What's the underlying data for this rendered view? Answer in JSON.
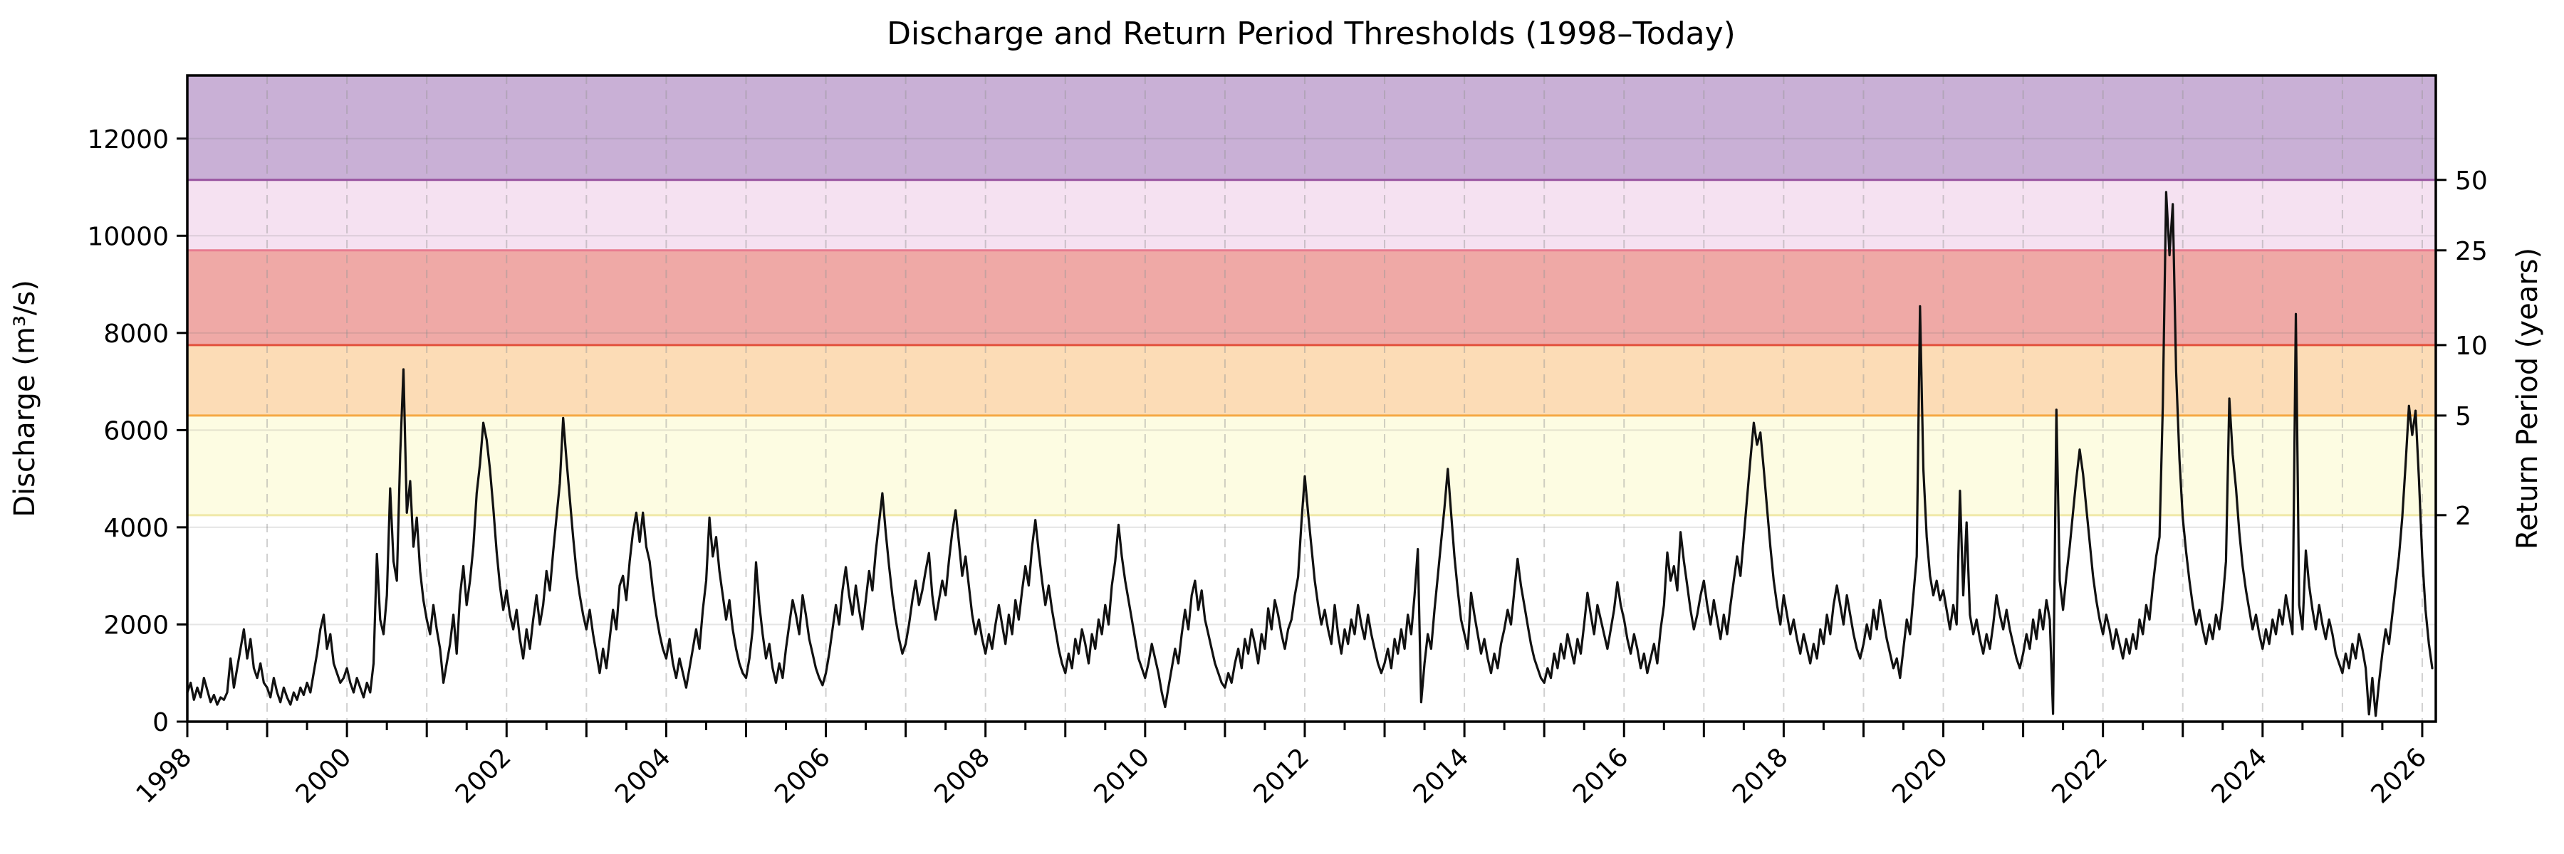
{
  "title": "Discharge and Return Period Thresholds (1998–Today)",
  "y_axis": {
    "label": "Discharge (m³/s)",
    "ticks": [
      0,
      2000,
      4000,
      6000,
      8000,
      10000,
      12000
    ]
  },
  "y2_axis": {
    "label": "Return Period (years)"
  },
  "x_axis": {
    "tick_label_years": [
      1998,
      2000,
      2002,
      2004,
      2006,
      2008,
      2010,
      2012,
      2014,
      2016,
      2018,
      2020,
      2022,
      2024,
      2026
    ]
  },
  "chart_data": {
    "type": "line",
    "title": "Discharge and Return Period Thresholds (1998–Today)",
    "xlabel": "",
    "ylabel": "Discharge (m³/s)",
    "y2label": "Return Period (years)",
    "xlim": [
      1998.0,
      2026.17
    ],
    "ylim": [
      0,
      13300
    ],
    "grid": true,
    "line_color": "#111111",
    "grid_color_h": "rgba(110,110,110,0.18)",
    "grid_color_v": "rgba(150,150,150,0.45)",
    "thresholds": [
      {
        "return_period_years": 2,
        "discharge": 4250,
        "band_color": "#fdfce2",
        "line_color": "#f0e9a8"
      },
      {
        "return_period_years": 5,
        "discharge": 6300,
        "band_color": "#fcdcb6",
        "line_color": "#f5a843"
      },
      {
        "return_period_years": 10,
        "discharge": 7750,
        "band_color": "#efa9a6",
        "line_color": "#e2503c"
      },
      {
        "return_period_years": 25,
        "discharge": 9700,
        "band_color": "#f5e1f1",
        "line_color": "#e87c90"
      },
      {
        "return_period_years": 50,
        "discharge": 11150,
        "band_color": "#c9b0d6",
        "line_color": "#9853a0"
      }
    ],
    "series": [
      {
        "name": "Discharge",
        "x_start_year": 1998.0,
        "samples_per_year": 24,
        "values": [
          600,
          800,
          450,
          700,
          500,
          900,
          650,
          400,
          550,
          350,
          500,
          450,
          600,
          1300,
          700,
          1100,
          1500,
          1900,
          1300,
          1700,
          1100,
          900,
          1200,
          800,
          700,
          500,
          900,
          600,
          400,
          700,
          500,
          350,
          600,
          450,
          700,
          550,
          800,
          600,
          1000,
          1400,
          1900,
          2200,
          1500,
          1800,
          1200,
          1000,
          800,
          900,
          1100,
          800,
          600,
          900,
          700,
          500,
          800,
          600,
          1200,
          3450,
          2100,
          1800,
          2600,
          4800,
          3300,
          2900,
          5500,
          7250,
          4300,
          4950,
          3600,
          4200,
          3100,
          2500,
          2100,
          1800,
          2400,
          1900,
          1500,
          800,
          1200,
          1600,
          2200,
          1400,
          2600,
          3200,
          2400,
          2900,
          3600,
          4700,
          5300,
          6150,
          5800,
          5200,
          4400,
          3500,
          2800,
          2300,
          2700,
          2200,
          1900,
          2300,
          1700,
          1300,
          1900,
          1500,
          2100,
          2600,
          2000,
          2400,
          3100,
          2700,
          3500,
          4200,
          4900,
          6250,
          5400,
          4600,
          3800,
          3100,
          2600,
          2200,
          1900,
          2300,
          1800,
          1400,
          1000,
          1500,
          1100,
          1700,
          2300,
          1900,
          2800,
          3000,
          2500,
          3300,
          3900,
          4300,
          3700,
          4300,
          3600,
          3300,
          2700,
          2200,
          1800,
          1500,
          1300,
          1700,
          1200,
          900,
          1300,
          1000,
          700,
          1100,
          1500,
          1900,
          1500,
          2300,
          2900,
          4200,
          3400,
          3800,
          3100,
          2600,
          2100,
          2500,
          1900,
          1500,
          1200,
          1000,
          900,
          1300,
          1900,
          3280,
          2400,
          1800,
          1300,
          1600,
          1100,
          800,
          1200,
          900,
          1500,
          2000,
          2500,
          2200,
          1800,
          2600,
          2200,
          1700,
          1400,
          1100,
          900,
          750,
          1000,
          1400,
          1900,
          2400,
          2000,
          2700,
          3180,
          2600,
          2200,
          2800,
          2300,
          1900,
          2500,
          3100,
          2700,
          3500,
          4100,
          4700,
          3900,
          3200,
          2600,
          2100,
          1700,
          1400,
          1600,
          2000,
          2500,
          2900,
          2400,
          2700,
          3100,
          3470,
          2600,
          2100,
          2500,
          2900,
          2600,
          3300,
          3900,
          4350,
          3700,
          3000,
          3400,
          2800,
          2200,
          1800,
          2100,
          1700,
          1400,
          1800,
          1500,
          2000,
          2400,
          2000,
          1600,
          2200,
          1800,
          2500,
          2100,
          2700,
          3200,
          2800,
          3600,
          4150,
          3500,
          2900,
          2400,
          2800,
          2300,
          1900,
          1500,
          1200,
          1000,
          1400,
          1100,
          1700,
          1400,
          1900,
          1600,
          1200,
          1800,
          1500,
          2100,
          1800,
          2400,
          2000,
          2800,
          3300,
          4050,
          3400,
          2900,
          2500,
          2100,
          1700,
          1300,
          1100,
          900,
          1200,
          1600,
          1300,
          1000,
          600,
          300,
          700,
          1100,
          1500,
          1200,
          1800,
          2300,
          1900,
          2600,
          2900,
          2300,
          2700,
          2100,
          1800,
          1500,
          1200,
          1000,
          800,
          700,
          1000,
          800,
          1200,
          1500,
          1100,
          1700,
          1400,
          1900,
          1600,
          1200,
          1800,
          1500,
          2330,
          1900,
          2500,
          2200,
          1800,
          1500,
          1900,
          2100,
          2600,
          2980,
          4100,
          5050,
          4300,
          3600,
          2900,
          2400,
          2000,
          2300,
          1900,
          1600,
          2400,
          1800,
          1400,
          1900,
          1600,
          2100,
          1800,
          2400,
          2000,
          1700,
          2200,
          1800,
          1500,
          1200,
          1000,
          1200,
          1500,
          1100,
          1700,
          1400,
          1900,
          1500,
          2200,
          1800,
          2600,
          3550,
          400,
          1200,
          1800,
          1500,
          2300,
          3000,
          3700,
          4400,
          5200,
          4300,
          3400,
          2700,
          2100,
          1800,
          1500,
          2650,
          2200,
          1800,
          1400,
          1700,
          1300,
          1000,
          1400,
          1100,
          1600,
          1900,
          2300,
          2000,
          2700,
          3350,
          2800,
          2400,
          2000,
          1600,
          1300,
          1100,
          900,
          800,
          1100,
          900,
          1400,
          1100,
          1600,
          1300,
          1800,
          1500,
          1200,
          1700,
          1400,
          2000,
          2650,
          2200,
          1800,
          2400,
          2100,
          1800,
          1500,
          1900,
          2300,
          2870,
          2400,
          2100,
          1700,
          1400,
          1800,
          1500,
          1100,
          1400,
          1000,
          1300,
          1600,
          1200,
          1900,
          2400,
          3480,
          2900,
          3200,
          2700,
          3900,
          3300,
          2800,
          2300,
          1900,
          2200,
          2600,
          2900,
          2400,
          2000,
          2500,
          2100,
          1700,
          2200,
          1800,
          2400,
          2900,
          3400,
          3000,
          3800,
          4600,
          5400,
          6150,
          5700,
          5950,
          5200,
          4400,
          3600,
          2900,
          2400,
          2000,
          2600,
          2200,
          1800,
          2100,
          1700,
          1400,
          1800,
          1500,
          1200,
          1600,
          1300,
          1900,
          1600,
          2200,
          1800,
          2400,
          2800,
          2400,
          2000,
          2600,
          2200,
          1800,
          1500,
          1300,
          1600,
          2000,
          1700,
          2300,
          1900,
          2500,
          2100,
          1700,
          1400,
          1100,
          1300,
          900,
          1500,
          2100,
          1800,
          2600,
          3400,
          8550,
          5200,
          3800,
          3000,
          2600,
          2900,
          2500,
          2700,
          2300,
          1900,
          2400,
          2000,
          4750,
          2600,
          4100,
          2200,
          1800,
          2100,
          1700,
          1400,
          1800,
          1500,
          2000,
          2600,
          2200,
          1900,
          2300,
          1900,
          1600,
          1300,
          1100,
          1400,
          1800,
          1500,
          2100,
          1700,
          2300,
          1900,
          2500,
          2100,
          160,
          6420,
          2900,
          2300,
          3000,
          3600,
          4300,
          5000,
          5600,
          5100,
          4400,
          3700,
          3000,
          2500,
          2100,
          1800,
          2200,
          1900,
          1500,
          1900,
          1600,
          1300,
          1700,
          1400,
          1800,
          1500,
          2100,
          1800,
          2400,
          2100,
          2800,
          3400,
          3800,
          6500,
          10900,
          9600,
          10650,
          7200,
          5400,
          4200,
          3500,
          2900,
          2400,
          2000,
          2300,
          1900,
          1600,
          2000,
          1700,
          2200,
          1900,
          2500,
          3300,
          6650,
          5500,
          4800,
          3900,
          3200,
          2700,
          2300,
          1900,
          2200,
          1800,
          1500,
          1900,
          1600,
          2100,
          1800,
          2300,
          2000,
          2600,
          2200,
          1800,
          8390,
          2400,
          1900,
          3520,
          2800,
          2300,
          1900,
          2400,
          2000,
          1700,
          2100,
          1800,
          1400,
          1200,
          1000,
          1400,
          1100,
          1600,
          1300,
          1800,
          1500,
          1100,
          150,
          900,
          120,
          800,
          1400,
          1900,
          1600,
          2200,
          2800,
          3400,
          4200,
          5300,
          6500,
          5900,
          6400,
          5000,
          3400,
          2300,
          1600,
          1100
        ]
      }
    ]
  }
}
